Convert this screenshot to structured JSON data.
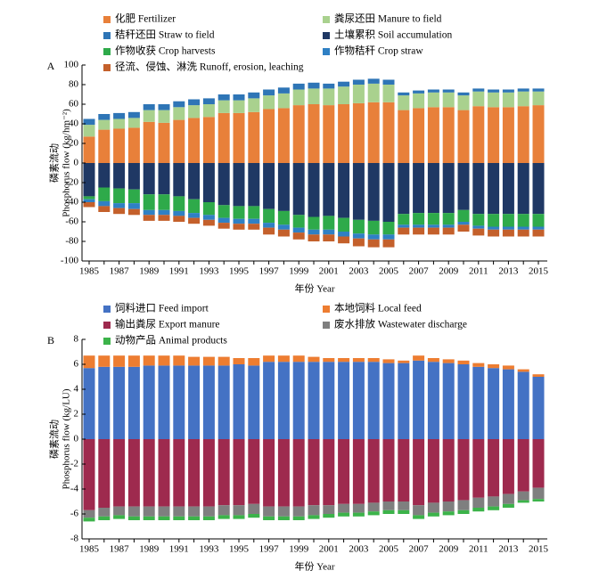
{
  "chart_data": [
    {
      "type": "bar",
      "stacked": true,
      "panel": "A",
      "ylabel": [
        "磷素流动",
        "Phosphorus flow (kg/hm⁻²)"
      ],
      "xlabel": "年份 Year",
      "categories": [
        "1985",
        null,
        "1987",
        null,
        "1989",
        null,
        "1991",
        null,
        "1993",
        null,
        "1995",
        null,
        "1997",
        null,
        "1999",
        null,
        "2001",
        null,
        "2003",
        null,
        "2005",
        null,
        "2007",
        null,
        "2009",
        null,
        "2011",
        null,
        "2013",
        null,
        "2015"
      ],
      "ylim": [
        -100,
        100
      ],
      "yticks": [
        -100,
        -80,
        -60,
        -40,
        -20,
        0,
        20,
        40,
        60,
        80,
        100
      ],
      "series": [
        {
          "name": "化肥 Fertilizer",
          "color": "#E8803A",
          "values": [
            27,
            34,
            35,
            36,
            42,
            41,
            44,
            46,
            47,
            51,
            51,
            52,
            55,
            56,
            59,
            60,
            59,
            60,
            61,
            62,
            62,
            54,
            56,
            57,
            57,
            54,
            58,
            57,
            57,
            58,
            59
          ]
        },
        {
          "name": "粪尿还田 Manure to field",
          "color": "#A9D18E",
          "values": [
            12,
            10,
            10,
            10,
            12,
            13,
            13,
            13,
            13,
            13,
            13,
            14,
            14,
            15,
            16,
            16,
            17,
            18,
            19,
            19,
            18,
            15,
            15,
            15,
            15,
            15,
            15,
            15,
            15,
            15,
            14
          ]
        },
        {
          "name": "秸秆还田 Straw to field",
          "color": "#2E75B6",
          "values": [
            6,
            6,
            6,
            6,
            6,
            6,
            6,
            6,
            6,
            6,
            6,
            6,
            6,
            6,
            6,
            6,
            5,
            5,
            5,
            5,
            5,
            3,
            3,
            3,
            3,
            3,
            3,
            3,
            3,
            3,
            3
          ]
        },
        {
          "name": "土壤累积 Soil accumulation",
          "color": "#1F3864",
          "values": [
            -34,
            -25,
            -26,
            -27,
            -32,
            -32,
            -34,
            -37,
            -40,
            -43,
            -44,
            -44,
            -47,
            -49,
            -53,
            -55,
            -54,
            -56,
            -58,
            -59,
            -60,
            -52,
            -51,
            -51,
            -51,
            -48,
            -52,
            -52,
            -52,
            -52,
            -52
          ]
        },
        {
          "name": "作物收获 Crop harvests",
          "color": "#2EAA4A",
          "values": [
            -3,
            -14,
            -15,
            -14,
            -16,
            -16,
            -15,
            -14,
            -13,
            -13,
            -13,
            -13,
            -14,
            -14,
            -13,
            -13,
            -14,
            -14,
            -14,
            -14,
            -13,
            -11,
            -12,
            -12,
            -12,
            -12,
            -12,
            -13,
            -13,
            -13,
            -13
          ]
        },
        {
          "name": "作物秸秆 Crop straw",
          "color": "#2F80C4",
          "values": [
            -3,
            -5,
            -5,
            -6,
            -5,
            -5,
            -5,
            -5,
            -5,
            -5,
            -5,
            -5,
            -5,
            -5,
            -5,
            -5,
            -5,
            -5,
            -5,
            -5,
            -5,
            -3,
            -3,
            -3,
            -3,
            -3,
            -3,
            -3,
            -3,
            -3,
            -3
          ]
        },
        {
          "name": "径流、侵蚀、淋洗 Runoff, erosion, leaching",
          "color": "#C4602B",
          "values": [
            -5,
            -6,
            -6,
            -6,
            -6,
            -6,
            -6,
            -6,
            -6,
            -6,
            -6,
            -6,
            -7,
            -7,
            -7,
            -7,
            -7,
            -7,
            -8,
            -8,
            -8,
            -7,
            -7,
            -7,
            -7,
            -7,
            -7,
            -7,
            -7,
            -7,
            -7
          ]
        }
      ]
    },
    {
      "type": "bar",
      "stacked": true,
      "panel": "B",
      "ylabel": [
        "磷素流动",
        "Phosphorus flow (kg/LU)"
      ],
      "xlabel": "年份 Year",
      "categories": [
        "1985",
        null,
        "1987",
        null,
        "1989",
        null,
        "1991",
        null,
        "1993",
        null,
        "1995",
        null,
        "1997",
        null,
        "1999",
        null,
        "2001",
        null,
        "2003",
        null,
        "2005",
        null,
        "2007",
        null,
        "2009",
        null,
        "2011",
        null,
        "2013",
        null,
        "2015"
      ],
      "ylim": [
        -8,
        8
      ],
      "yticks": [
        -8,
        -6,
        -4,
        -2,
        0,
        2,
        4,
        6,
        8
      ],
      "series": [
        {
          "name": "饲料进口 Feed import",
          "color": "#4472C4",
          "values": [
            5.7,
            5.8,
            5.8,
            5.8,
            5.9,
            5.9,
            5.9,
            5.9,
            5.9,
            5.9,
            6.0,
            5.9,
            6.2,
            6.2,
            6.2,
            6.2,
            6.2,
            6.2,
            6.2,
            6.2,
            6.1,
            6.1,
            6.3,
            6.2,
            6.1,
            6.0,
            5.8,
            5.7,
            5.6,
            5.4,
            5.0
          ]
        },
        {
          "name": "本地饲料 Local feed",
          "color": "#ED7D31",
          "values": [
            1.0,
            0.9,
            0.9,
            0.9,
            0.8,
            0.8,
            0.8,
            0.7,
            0.7,
            0.7,
            0.5,
            0.6,
            0.5,
            0.5,
            0.5,
            0.4,
            0.3,
            0.3,
            0.3,
            0.3,
            0.3,
            0.2,
            0.4,
            0.3,
            0.3,
            0.3,
            0.3,
            0.3,
            0.3,
            0.2,
            0.2
          ]
        },
        {
          "name": "输出粪尿 Export manure",
          "color": "#9E2A4E",
          "values": [
            -5.7,
            -5.5,
            -5.4,
            -5.4,
            -5.4,
            -5.4,
            -5.4,
            -5.4,
            -5.4,
            -5.3,
            -5.3,
            -5.2,
            -5.4,
            -5.4,
            -5.4,
            -5.3,
            -5.3,
            -5.2,
            -5.2,
            -5.1,
            -5.0,
            -5.0,
            -5.3,
            -5.1,
            -5.0,
            -4.9,
            -4.7,
            -4.6,
            -4.4,
            -4.2,
            -3.9
          ]
        },
        {
          "name": "废水排放 Wastewater discharge",
          "color": "#7F7F7F",
          "values": [
            -0.6,
            -0.7,
            -0.7,
            -0.8,
            -0.8,
            -0.8,
            -0.8,
            -0.8,
            -0.8,
            -0.8,
            -0.8,
            -0.8,
            -0.8,
            -0.8,
            -0.8,
            -0.8,
            -0.7,
            -0.7,
            -0.7,
            -0.7,
            -0.7,
            -0.7,
            -0.8,
            -0.8,
            -0.8,
            -0.8,
            -0.8,
            -0.8,
            -0.8,
            -0.7,
            -0.9
          ]
        },
        {
          "name": "动物产品 Animal products",
          "color": "#3CB34A",
          "values": [
            -0.3,
            -0.3,
            -0.3,
            -0.3,
            -0.3,
            -0.3,
            -0.3,
            -0.3,
            -0.3,
            -0.3,
            -0.3,
            -0.3,
            -0.3,
            -0.3,
            -0.3,
            -0.3,
            -0.3,
            -0.3,
            -0.3,
            -0.3,
            -0.3,
            -0.3,
            -0.3,
            -0.3,
            -0.3,
            -0.3,
            -0.3,
            -0.3,
            -0.3,
            -0.2,
            -0.2
          ]
        }
      ]
    }
  ]
}
